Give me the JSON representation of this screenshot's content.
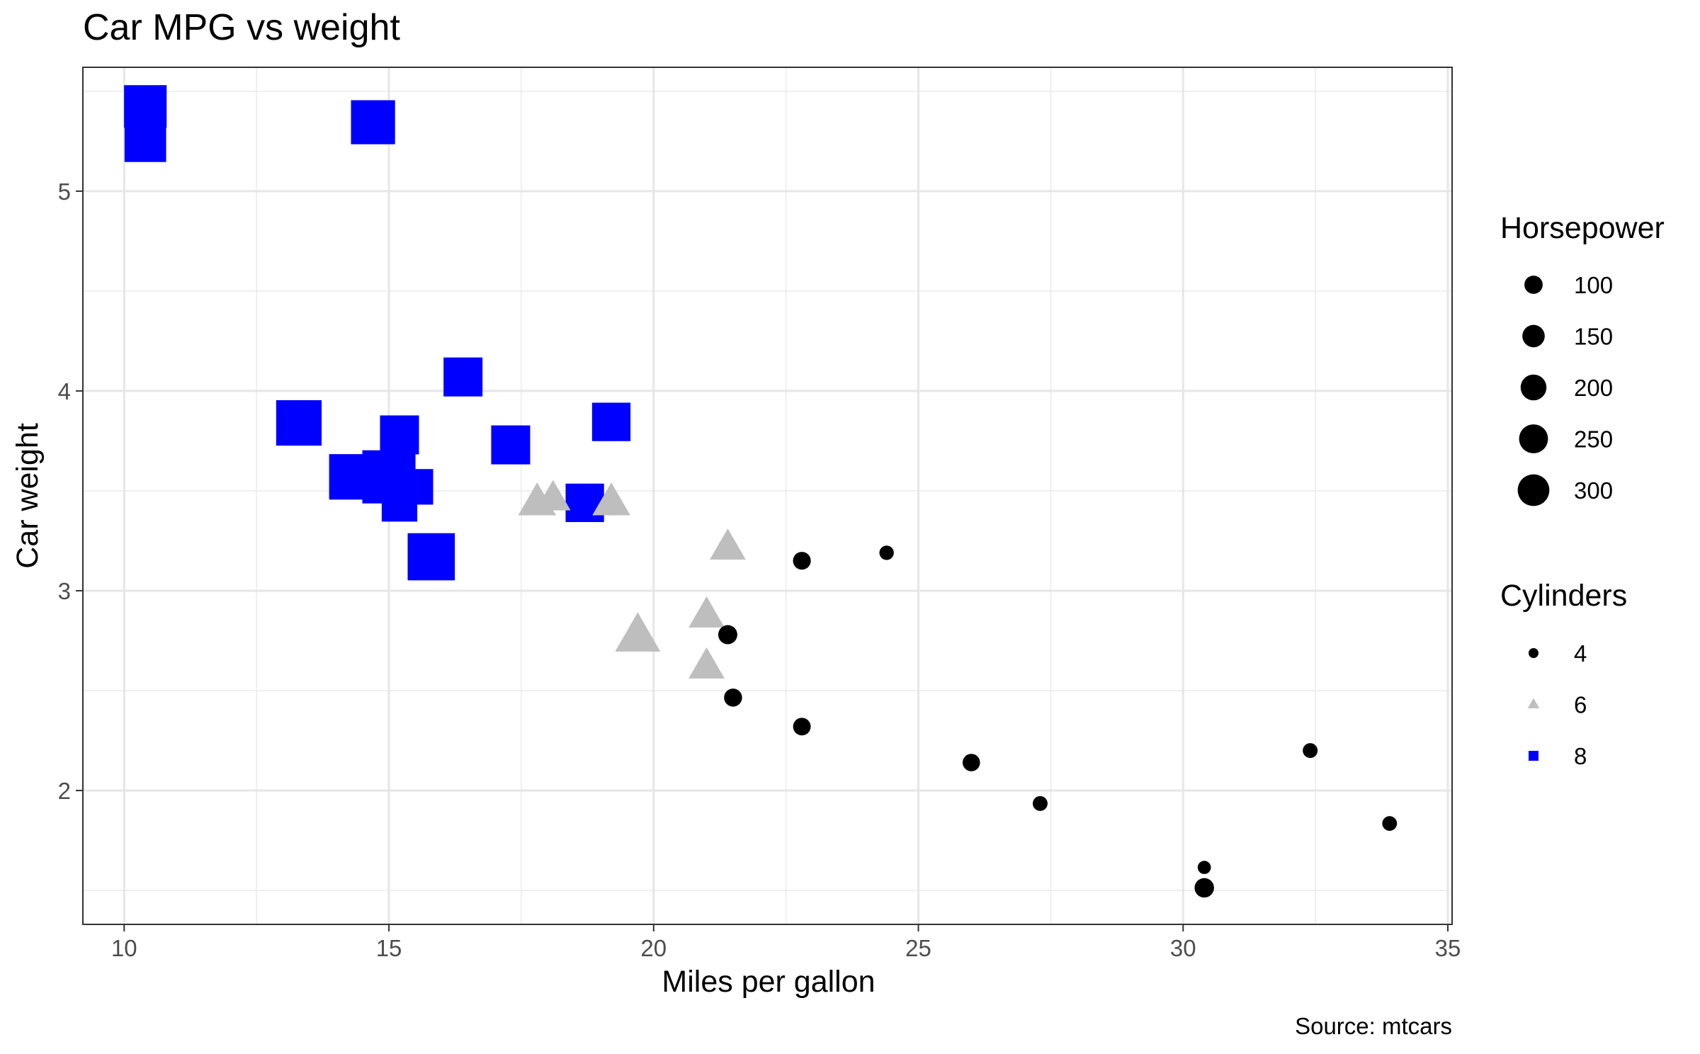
{
  "chart_data": {
    "type": "scatter",
    "title": "Car MPG vs weight",
    "xlabel": "Miles per gallon",
    "ylabel": "Car weight",
    "caption": "Source: mtcars",
    "xlim": [
      9.22,
      35.08
    ],
    "ylim": [
      1.33,
      5.62
    ],
    "x_ticks": [
      10,
      15,
      20,
      25,
      30,
      35
    ],
    "x_tick_labels": [
      "10",
      "15",
      "20",
      "25",
      "30",
      "35"
    ],
    "y_ticks": [
      2,
      3,
      4,
      5
    ],
    "y_tick_labels": [
      "2",
      "3",
      "4",
      "5"
    ],
    "grid": true,
    "legend_position": "right",
    "size_legend": {
      "title": "Horsepower",
      "entries": [
        {
          "label": "100",
          "hp": 100
        },
        {
          "label": "150",
          "hp": 150
        },
        {
          "label": "200",
          "hp": 200
        },
        {
          "label": "250",
          "hp": 250
        },
        {
          "label": "300",
          "hp": 300
        }
      ]
    },
    "shape_legend": {
      "title": "Cylinders",
      "entries": [
        {
          "label": "4",
          "cyl": 4,
          "shape": "circle",
          "color": "#000000"
        },
        {
          "label": "6",
          "cyl": 6,
          "shape": "triangle",
          "color": "#bebebe"
        },
        {
          "label": "8",
          "cyl": 8,
          "shape": "square",
          "color": "#0000ff"
        }
      ]
    },
    "points": [
      {
        "mpg": 21.0,
        "wt": 2.62,
        "hp": 110,
        "cyl": 6
      },
      {
        "mpg": 21.0,
        "wt": 2.875,
        "hp": 110,
        "cyl": 6
      },
      {
        "mpg": 22.8,
        "wt": 2.32,
        "hp": 93,
        "cyl": 4
      },
      {
        "mpg": 21.4,
        "wt": 3.215,
        "hp": 110,
        "cyl": 6
      },
      {
        "mpg": 18.7,
        "wt": 3.44,
        "hp": 175,
        "cyl": 8
      },
      {
        "mpg": 18.1,
        "wt": 3.46,
        "hp": 105,
        "cyl": 6
      },
      {
        "mpg": 14.3,
        "wt": 3.57,
        "hp": 245,
        "cyl": 8
      },
      {
        "mpg": 24.4,
        "wt": 3.19,
        "hp": 62,
        "cyl": 4
      },
      {
        "mpg": 22.8,
        "wt": 3.15,
        "hp": 95,
        "cyl": 4
      },
      {
        "mpg": 19.2,
        "wt": 3.44,
        "hp": 123,
        "cyl": 6
      },
      {
        "mpg": 17.8,
        "wt": 3.44,
        "hp": 123,
        "cyl": 6
      },
      {
        "mpg": 16.4,
        "wt": 4.07,
        "hp": 180,
        "cyl": 8
      },
      {
        "mpg": 17.3,
        "wt": 3.73,
        "hp": 180,
        "cyl": 8
      },
      {
        "mpg": 15.2,
        "wt": 3.78,
        "hp": 180,
        "cyl": 8
      },
      {
        "mpg": 10.4,
        "wt": 5.25,
        "hp": 205,
        "cyl": 8
      },
      {
        "mpg": 10.4,
        "wt": 5.424,
        "hp": 215,
        "cyl": 8
      },
      {
        "mpg": 14.7,
        "wt": 5.345,
        "hp": 230,
        "cyl": 8
      },
      {
        "mpg": 32.4,
        "wt": 2.2,
        "hp": 66,
        "cyl": 4
      },
      {
        "mpg": 30.4,
        "wt": 1.615,
        "hp": 52,
        "cyl": 4
      },
      {
        "mpg": 33.9,
        "wt": 1.835,
        "hp": 65,
        "cyl": 4
      },
      {
        "mpg": 21.5,
        "wt": 2.465,
        "hp": 97,
        "cyl": 4
      },
      {
        "mpg": 15.5,
        "wt": 3.52,
        "hp": 150,
        "cyl": 8
      },
      {
        "mpg": 15.2,
        "wt": 3.435,
        "hp": 150,
        "cyl": 8
      },
      {
        "mpg": 13.3,
        "wt": 3.84,
        "hp": 245,
        "cyl": 8
      },
      {
        "mpg": 19.2,
        "wt": 3.845,
        "hp": 175,
        "cyl": 8
      },
      {
        "mpg": 27.3,
        "wt": 1.935,
        "hp": 66,
        "cyl": 4
      },
      {
        "mpg": 26.0,
        "wt": 2.14,
        "hp": 91,
        "cyl": 4
      },
      {
        "mpg": 30.4,
        "wt": 1.513,
        "hp": 113,
        "cyl": 4
      },
      {
        "mpg": 15.8,
        "wt": 3.17,
        "hp": 264,
        "cyl": 8
      },
      {
        "mpg": 19.7,
        "wt": 2.77,
        "hp": 175,
        "cyl": 6
      },
      {
        "mpg": 15.0,
        "wt": 3.57,
        "hp": 335,
        "cyl": 8
      },
      {
        "mpg": 21.4,
        "wt": 2.78,
        "hp": 109,
        "cyl": 4
      }
    ]
  }
}
